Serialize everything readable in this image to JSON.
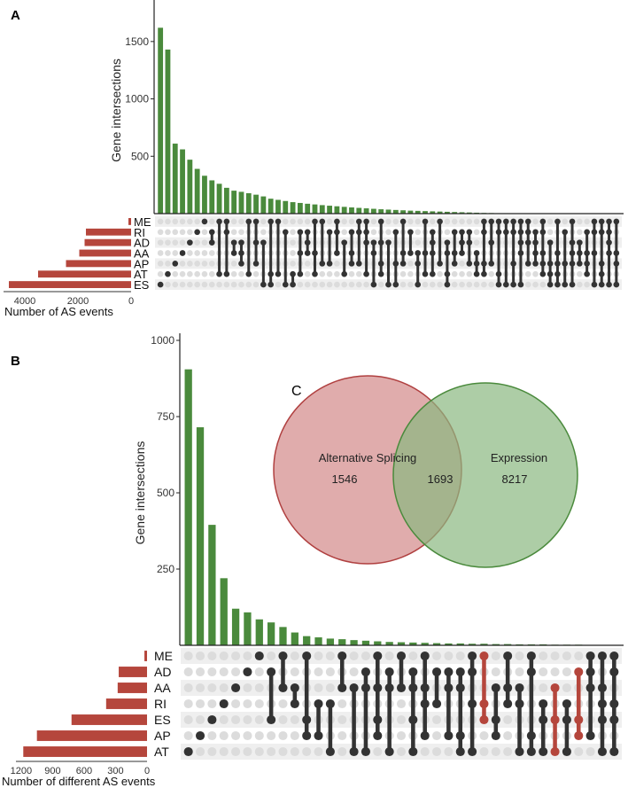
{
  "panels": {
    "a": {
      "letter": "A"
    },
    "b": {
      "letter": "B"
    },
    "c": {
      "letter": "C"
    }
  },
  "colors": {
    "intersection_bar": "#4a8a3c",
    "set_bar": "#b5463c",
    "dot_on": "#333333",
    "dot_off": "#dcdcdc",
    "stripe": "#efefef",
    "highlight": "#b5463c",
    "venn_left_fill": "#cf8080",
    "venn_left_stroke": "#b04040",
    "venn_right_fill": "#8ab880",
    "venn_right_stroke": "#4a8a3c"
  },
  "chart_data": [
    {
      "panel": "A",
      "type": "bar",
      "subtype": "upset",
      "ylabel": "Gene intersections",
      "ylim": [
        0,
        1800
      ],
      "yticks": [
        500,
        1000,
        1500
      ],
      "values": [
        1620,
        1430,
        610,
        560,
        470,
        390,
        330,
        290,
        260,
        225,
        200,
        190,
        178,
        165,
        150,
        130,
        120,
        110,
        100,
        93,
        86,
        80,
        74,
        69,
        64,
        59,
        54,
        50,
        46,
        42,
        38,
        35,
        32,
        29,
        26,
        24,
        22,
        20,
        18,
        16,
        14,
        12,
        10,
        8,
        6,
        5,
        4,
        4,
        3,
        3,
        2,
        2,
        2,
        1,
        1,
        1,
        1,
        1,
        1,
        1,
        1,
        1,
        1
      ],
      "sets": [
        {
          "name": "ME",
          "size": 100
        },
        {
          "name": "RI",
          "size": 1700
        },
        {
          "name": "AD",
          "size": 1750
        },
        {
          "name": "AA",
          "size": 1950
        },
        {
          "name": "AP",
          "size": 2450
        },
        {
          "name": "AT",
          "size": 3500
        },
        {
          "name": "ES",
          "size": 4600
        }
      ],
      "set_xlabel": "Number of AS events",
      "set_xticks": [
        4000,
        2000,
        0
      ],
      "set_xlim": [
        0,
        4800
      ]
    },
    {
      "panel": "B",
      "type": "bar",
      "subtype": "upset",
      "ylabel": "Gene intersections",
      "ylim": [
        0,
        1000
      ],
      "yticks": [
        250,
        500,
        750,
        1000
      ],
      "values": [
        905,
        715,
        395,
        220,
        120,
        108,
        85,
        75,
        60,
        42,
        30,
        26,
        22,
        20,
        17,
        15,
        13,
        11,
        10,
        9,
        8,
        7,
        6,
        6,
        5,
        5,
        4,
        4,
        3,
        3,
        3,
        2,
        2,
        2,
        1,
        1,
        1
      ],
      "sets": [
        {
          "name": "ME",
          "size": 25
        },
        {
          "name": "AD",
          "size": 270
        },
        {
          "name": "AA",
          "size": 280
        },
        {
          "name": "RI",
          "size": 390
        },
        {
          "name": "ES",
          "size": 720
        },
        {
          "name": "AP",
          "size": 1050
        },
        {
          "name": "AT",
          "size": 1180
        }
      ],
      "set_xlabel": "Number of different AS events",
      "set_xticks": [
        1200,
        900,
        600,
        300,
        0
      ],
      "set_xlim": [
        0,
        1250
      ],
      "highlight_columns": [
        25,
        31,
        33
      ]
    },
    {
      "panel": "C",
      "type": "venn",
      "sets": [
        {
          "name": "Alternative Splicing",
          "only": 1546
        },
        {
          "name": "Expression",
          "only": 8217
        }
      ],
      "overlap": 1693
    }
  ]
}
